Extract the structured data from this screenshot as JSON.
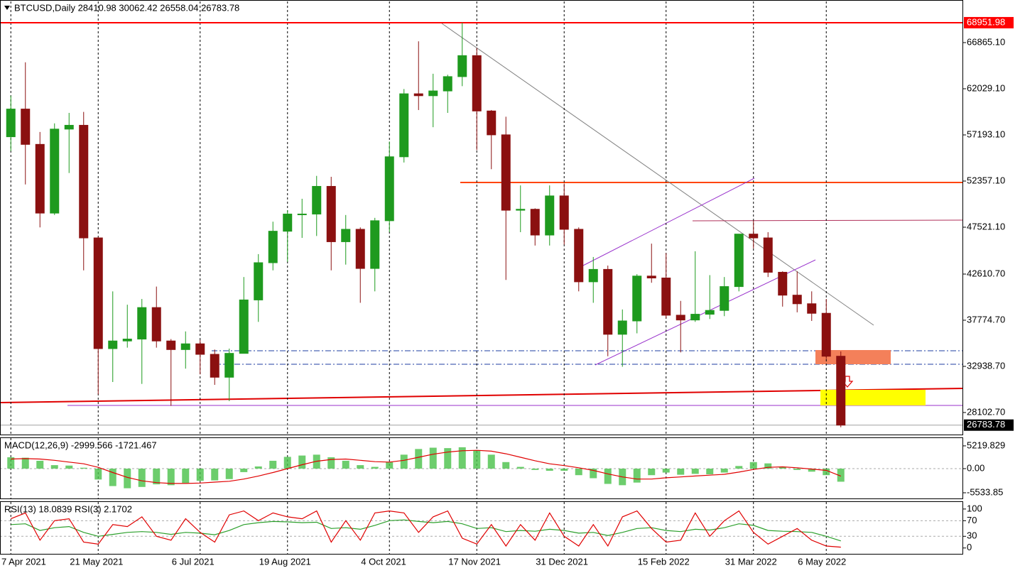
{
  "chart_data": [
    {
      "type": "candlestick",
      "title": "BTCUSD,Daily  28410.98 30062.42 26558.04 26783.78",
      "categories": [
        "7 Apr 2021",
        null,
        null,
        null,
        null,
        null,
        "21 May 2021",
        null,
        null,
        null,
        null,
        null,
        null,
        "6 Jul 2021",
        null,
        null,
        null,
        null,
        null,
        "19 Aug 2021",
        null,
        null,
        null,
        null,
        null,
        null,
        "4 Oct 2021",
        null,
        null,
        null,
        null,
        null,
        "17 Nov 2021",
        null,
        null,
        null,
        null,
        null,
        "31 Dec 2021",
        null,
        null,
        null,
        null,
        null,
        null,
        "15 Feb 2022",
        null,
        null,
        null,
        null,
        null,
        "31 Mar 2022",
        null,
        null,
        null,
        null,
        "6 May 2022",
        null
      ],
      "open": [
        57000,
        59900,
        56200,
        49000,
        57800,
        58200,
        46400,
        34800,
        35600,
        35800,
        39100,
        35600,
        34700,
        35300,
        34200,
        31800,
        34300,
        39900,
        43800,
        47100,
        48900,
        48900,
        51800,
        46000,
        47300,
        43200,
        48200,
        54900,
        61500,
        61300,
        61800,
        63300,
        65500,
        59700,
        57200,
        49300,
        49400,
        46700,
        50800,
        47300,
        41800,
        43100,
        36300,
        37700,
        42400,
        42200,
        38300,
        37800,
        38400,
        38800,
        41300,
        46800,
        46400,
        42800,
        40400,
        39500,
        38500,
        34000
      ],
      "high": [
        61300,
        64800,
        57500,
        58400,
        59500,
        59600,
        46500,
        40800,
        39400,
        40000,
        41300,
        35800,
        36600,
        35700,
        34700,
        34800,
        42300,
        44700,
        48100,
        49300,
        50500,
        52900,
        52800,
        48800,
        47500,
        48500,
        56500,
        62000,
        67000,
        63600,
        63500,
        68951.98,
        66300,
        59800,
        59100,
        51900,
        49500,
        51900,
        52100,
        47500,
        44400,
        43500,
        38900,
        42600,
        45800,
        44800,
        39800,
        45000,
        42500,
        42300,
        46800,
        48200,
        47000,
        42900,
        42900,
        40800,
        40000,
        34500
      ],
      "low": [
        55500,
        52000,
        47500,
        48800,
        53200,
        43000,
        30000,
        31300,
        34900,
        31100,
        34900,
        28800,
        32700,
        32100,
        31000,
        29300,
        34300,
        37600,
        43000,
        43900,
        46400,
        46600,
        43000,
        43600,
        39600,
        40800,
        47000,
        54300,
        59800,
        58000,
        59500,
        62300,
        55600,
        53600,
        42000,
        47000,
        45600,
        45600,
        45700,
        40800,
        39600,
        34000,
        32900,
        36400,
        41700,
        38000,
        34400,
        37600,
        37900,
        38200,
        40800,
        45300,
        42300,
        39200,
        38600,
        37700,
        33700,
        26558.04
      ],
      "close": [
        59900,
        56200,
        49000,
        57800,
        58200,
        46400,
        34800,
        35600,
        35800,
        39100,
        35600,
        34700,
        35300,
        34200,
        31800,
        34300,
        39900,
        43800,
        47100,
        48900,
        48900,
        51800,
        46000,
        47300,
        43200,
        48200,
        54900,
        61500,
        61300,
        61800,
        63300,
        65500,
        59700,
        57200,
        49300,
        49400,
        46700,
        50800,
        47300,
        41800,
        43100,
        36300,
        37700,
        42400,
        42200,
        38300,
        37800,
        38400,
        38800,
        41300,
        46800,
        46400,
        42800,
        40400,
        39500,
        38500,
        34000,
        26783.78
      ],
      "up_color": "#1e9a1e",
      "down_color": "#8b1010",
      "ylim": [
        25720,
        71180
      ],
      "yticks": [
        {
          "value": 66865.1,
          "label": "66865.10"
        },
        {
          "value": 62029.1,
          "label": "62029.10"
        },
        {
          "value": 57193.1,
          "label": "57193.10"
        },
        {
          "value": 52357.1,
          "label": "52357.10"
        },
        {
          "value": 47521.1,
          "label": "47521.10"
        },
        {
          "value": 42610.7,
          "label": "42610.70"
        },
        {
          "value": 37774.7,
          "label": "37774.70"
        },
        {
          "value": 32938.7,
          "label": "32938.70"
        },
        {
          "value": 28102.7,
          "label": "28102.70"
        }
      ],
      "high_level": 68951.98,
      "high_level_color": "#ff0000",
      "last_price": 26783.78,
      "grid": true
    },
    {
      "type": "macd",
      "title": "MACD(12,26,9) -2999.566 -1721.467",
      "series": [
        {
          "type": "bar",
          "color": "#48c048",
          "values": [
            2600,
            2500,
            1800,
            800,
            700,
            200,
            -2500,
            -4000,
            -4500,
            -4200,
            -3600,
            -3800,
            -3300,
            -2800,
            -2700,
            -2400,
            -800,
            500,
            1800,
            2700,
            3000,
            3200,
            2600,
            1800,
            800,
            400,
            1500,
            3200,
            4500,
            4800,
            4700,
            4900,
            4200,
            3200,
            1500,
            400,
            -300,
            -500,
            -500,
            -1500,
            -2200,
            -3500,
            -3800,
            -3200,
            -1500,
            -900,
            -1400,
            -1200,
            -1300,
            -900,
            600,
            1500,
            1200,
            400,
            -300,
            -700,
            -1500,
            -2999.566
          ]
        },
        {
          "type": "line",
          "color": "#e00000",
          "values": [
            2200,
            2300,
            2200,
            1900,
            1500,
            1100,
            300,
            -900,
            -2000,
            -2800,
            -3200,
            -3400,
            -3400,
            -3300,
            -3100,
            -2900,
            -2400,
            -1700,
            -900,
            0,
            900,
            1700,
            2100,
            2200,
            1900,
            1600,
            1500,
            1900,
            2600,
            3300,
            3800,
            4100,
            4200,
            4000,
            3400,
            2600,
            1800,
            1100,
            700,
            200,
            -400,
            -1200,
            -1900,
            -2400,
            -2400,
            -2100,
            -1900,
            -1700,
            -1500,
            -1300,
            -800,
            -200,
            300,
            400,
            200,
            -100,
            -400,
            -1721.467
          ]
        }
      ],
      "ylim": [
        -7000,
        7000
      ],
      "yticks": [
        5219.829,
        {
          "value": 0,
          "label": "0.00"
        },
        -5533.85
      ],
      "zero_line": true,
      "grid": true
    },
    {
      "type": "line",
      "title": "RSI(13) 18.0839  RSI(3) 2.1702",
      "series": [
        {
          "color": "#2ca02c",
          "values": [
            60,
            62,
            45,
            52,
            55,
            40,
            30,
            35,
            40,
            42,
            40,
            35,
            40,
            38,
            34,
            45,
            60,
            65,
            68,
            67,
            65,
            66,
            50,
            52,
            48,
            58,
            70,
            72,
            68,
            65,
            68,
            62,
            50,
            52,
            42,
            45,
            43,
            48,
            45,
            38,
            40,
            32,
            40,
            50,
            52,
            45,
            42,
            48,
            46,
            52,
            62,
            58,
            45,
            43,
            42,
            40,
            30,
            18.0839
          ]
        },
        {
          "color": "#e00000",
          "values": [
            75,
            90,
            20,
            70,
            75,
            15,
            10,
            60,
            55,
            80,
            30,
            20,
            75,
            40,
            15,
            85,
            95,
            70,
            90,
            80,
            75,
            95,
            15,
            70,
            20,
            90,
            95,
            90,
            40,
            80,
            95,
            25,
            10,
            60,
            5,
            60,
            20,
            90,
            30,
            5,
            60,
            5,
            80,
            95,
            50,
            15,
            20,
            90,
            30,
            70,
            95,
            40,
            10,
            30,
            50,
            20,
            5,
            2.1702
          ]
        }
      ],
      "ylim": [
        -15,
        118
      ],
      "yticks": [
        100,
        70,
        30,
        0
      ],
      "levels": [
        70,
        30
      ],
      "grid": true
    }
  ]
}
